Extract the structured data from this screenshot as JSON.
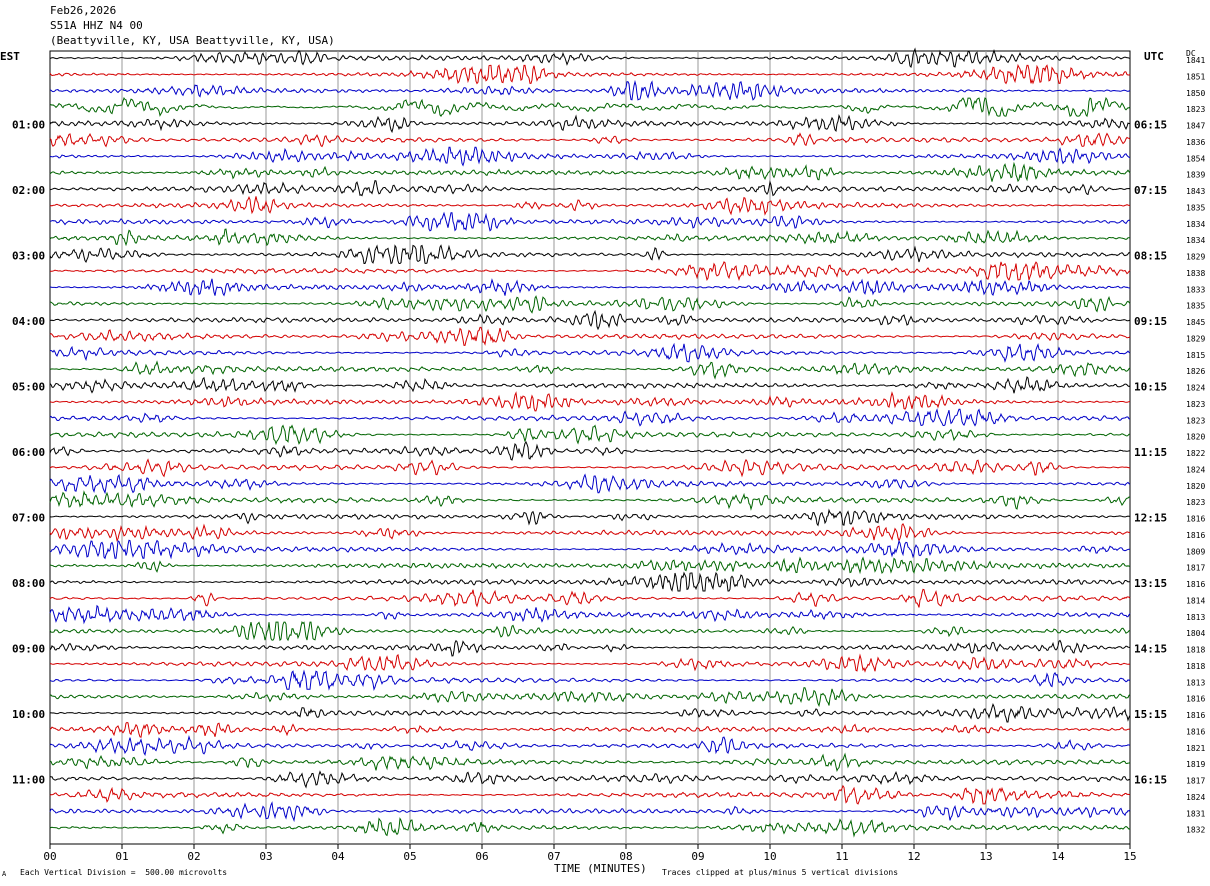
{
  "header": {
    "date": "Feb26,2026",
    "station": "S51A HHZ N4 00",
    "location": "(Beattyville, KY, USA Beattyville, KY, USA)"
  },
  "labels": {
    "left_tz": "EST",
    "right_tz": "UTC",
    "dc_label": "DC",
    "xlabel": "TIME (MINUTES)",
    "scale_note": "Each Vertical Division =  500.00 microvolts",
    "clip_note": "Traces clipped at plus/minus 5 vertical divisions",
    "corner_mark": "A"
  },
  "colors": {
    "cycle": [
      "#000000",
      "#d40000",
      "#0000c8",
      "#006400"
    ],
    "grid": "#9a9a9a"
  },
  "chart_data": {
    "type": "helicorder",
    "rows_per_hour": 4,
    "minutes_per_row": 15,
    "xlim": [
      0,
      15
    ],
    "x_ticks": [
      "00",
      "01",
      "02",
      "03",
      "04",
      "05",
      "06",
      "07",
      "08",
      "09",
      "10",
      "11",
      "12",
      "13",
      "14",
      "15"
    ],
    "left_hour_labels": [
      "01:00",
      "02:00",
      "03:00",
      "04:00",
      "05:00",
      "06:00",
      "07:00",
      "08:00",
      "09:00",
      "10:00",
      "11:00"
    ],
    "right_hour_labels": [
      "06:15",
      "07:15",
      "08:15",
      "09:15",
      "10:15",
      "11:15",
      "12:15",
      "13:15",
      "14:15",
      "15:15",
      "16:15"
    ],
    "dc_offsets": [
      1841,
      1851,
      1850,
      1823,
      1847,
      1836,
      1854,
      1839,
      1843,
      1835,
      1834,
      1834,
      1829,
      1838,
      1833,
      1835,
      1845,
      1829,
      1815,
      1826,
      1824,
      1823,
      1823,
      1820,
      1822,
      1824,
      1820,
      1823,
      1816,
      1816,
      1809,
      1817,
      1816,
      1814,
      1813,
      1804,
      1818,
      1818,
      1813,
      1816,
      1816,
      1816,
      1821,
      1819,
      1817,
      1824,
      1831,
      1832
    ]
  }
}
